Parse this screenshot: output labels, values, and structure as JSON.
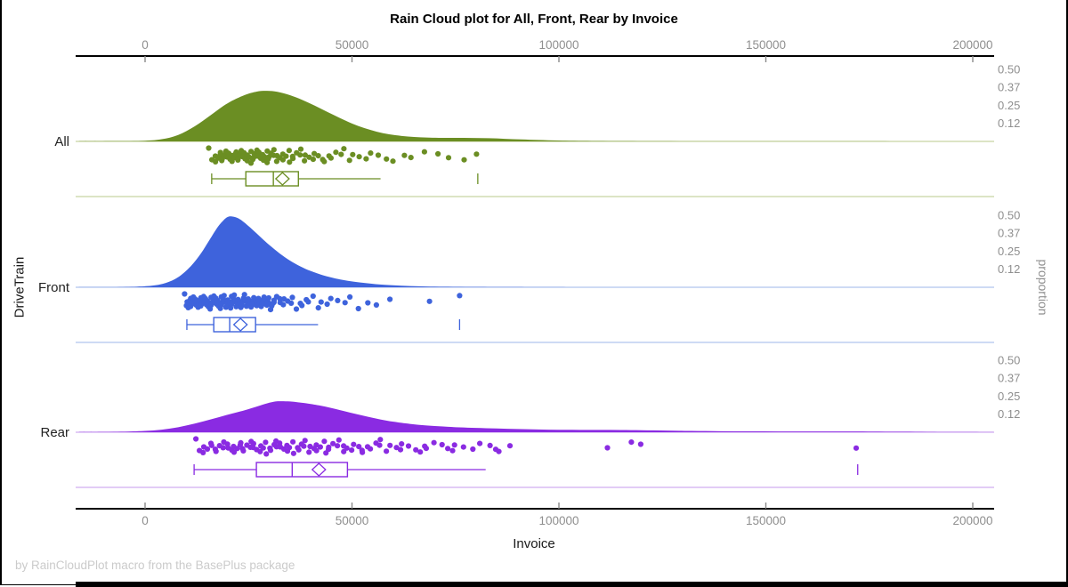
{
  "title": "Rain Cloud plot for All, Front, Rear by Invoice",
  "footer_note": "by RainCloudPlot macro from the BasePlus package",
  "style": {
    "background": "#ffffff",
    "axis_line_color": "#000000",
    "tick_color": "#8a8a8a",
    "tick_label_color": "#8f8f8f",
    "category_label_color": "#222222",
    "frame_color": "#000000"
  },
  "chart_data": {
    "type": "raincloud",
    "title": "Rain Cloud plot for All, Front, Rear by Invoice",
    "xlabel": "Invoice",
    "ylabel": "DriveTrain",
    "y2label": "proportion",
    "x_ticks": [
      0,
      50000,
      100000,
      150000,
      200000
    ],
    "x_tick_labels": [
      "0",
      "50000",
      "100000",
      "150000",
      "200000"
    ],
    "x_range": [
      -16800,
      205200
    ],
    "grid": false,
    "categories": [
      "All",
      "Front",
      "Rear"
    ],
    "proportion_ticks": [
      0.5,
      0.375,
      0.25,
      0.125
    ],
    "proportion_tick_labels": [
      "0.50",
      "0.37",
      "0.25",
      "0.12"
    ],
    "series": [
      {
        "name": "All",
        "color": "#6B8E23",
        "light_color": "#C8D3A2",
        "box": {
          "min": 16100,
          "q1": 24350,
          "median": 31000,
          "mean": 33200,
          "q3": 37050,
          "max": 56900,
          "outliers": [
            80400
          ]
        },
        "density": [
          [
            -16000,
            0.001
          ],
          [
            -8000,
            0.002
          ],
          [
            0,
            0.005
          ],
          [
            4000,
            0.015
          ],
          [
            8000,
            0.045
          ],
          [
            12000,
            0.105
          ],
          [
            16000,
            0.185
          ],
          [
            20000,
            0.265
          ],
          [
            24000,
            0.32
          ],
          [
            27000,
            0.345
          ],
          [
            29500,
            0.35
          ],
          [
            32000,
            0.343
          ],
          [
            35000,
            0.32
          ],
          [
            38000,
            0.287
          ],
          [
            41000,
            0.248
          ],
          [
            44000,
            0.205
          ],
          [
            47000,
            0.163
          ],
          [
            50000,
            0.124
          ],
          [
            53000,
            0.092
          ],
          [
            56000,
            0.067
          ],
          [
            59000,
            0.049
          ],
          [
            62000,
            0.038
          ],
          [
            65000,
            0.031
          ],
          [
            68000,
            0.027
          ],
          [
            71000,
            0.025
          ],
          [
            75000,
            0.0245
          ],
          [
            79000,
            0.024
          ],
          [
            83000,
            0.022
          ],
          [
            87000,
            0.018
          ],
          [
            91000,
            0.014
          ],
          [
            95000,
            0.01
          ],
          [
            100000,
            0.006
          ],
          [
            106000,
            0.0035
          ],
          [
            114000,
            0.002
          ],
          [
            125000,
            0.0012
          ],
          [
            140000,
            0.0008
          ],
          [
            160000,
            0.0005
          ],
          [
            180000,
            0.0003
          ],
          [
            205000,
            0.0002
          ]
        ],
        "points": [
          15700,
          16200,
          16800,
          17200,
          17500,
          17900,
          18300,
          18500,
          18800,
          19200,
          19500,
          19700,
          20100,
          20400,
          20600,
          20800,
          21200,
          21500,
          21700,
          21900,
          22300,
          22700,
          22900,
          23100,
          23400,
          23800,
          24000,
          24200,
          24500,
          24900,
          25100,
          25300,
          25700,
          26100,
          26300,
          26400,
          26800,
          27200,
          27400,
          27600,
          28000,
          28400,
          28600,
          28800,
          29200,
          29600,
          29800,
          30000,
          30400,
          30800,
          31300,
          31700,
          32200,
          32600,
          33100,
          33500,
          34000,
          34500,
          35000,
          35500,
          36000,
          36600,
          37200,
          37800,
          38400,
          39000,
          39700,
          40400,
          41100,
          41800,
          42600,
          43400,
          44300,
          45200,
          46100,
          47100,
          48200,
          49300,
          50500,
          51800,
          53200,
          54700,
          56300,
          58000,
          60000,
          62500,
          64500,
          67500,
          70500,
          73500,
          77000,
          80400
        ]
      },
      {
        "name": "Front",
        "color": "#3E63DC",
        "light_color": "#B0C3EE",
        "box": {
          "min": 10100,
          "q1": 16600,
          "median": 20450,
          "mean": 23050,
          "q3": 26700,
          "max": 41800,
          "outliers": [
            76000
          ]
        },
        "density": [
          [
            -16000,
            0.0005
          ],
          [
            -8000,
            0.001
          ],
          [
            -2000,
            0.004
          ],
          [
            2000,
            0.012
          ],
          [
            5000,
            0.03
          ],
          [
            8000,
            0.07
          ],
          [
            11000,
            0.145
          ],
          [
            13500,
            0.235
          ],
          [
            15500,
            0.325
          ],
          [
            17500,
            0.415
          ],
          [
            19000,
            0.465
          ],
          [
            20000,
            0.487
          ],
          [
            21000,
            0.49
          ],
          [
            22500,
            0.478
          ],
          [
            24000,
            0.448
          ],
          [
            26000,
            0.398
          ],
          [
            28000,
            0.345
          ],
          [
            30000,
            0.293
          ],
          [
            32500,
            0.235
          ],
          [
            35000,
            0.185
          ],
          [
            37500,
            0.145
          ],
          [
            40000,
            0.113
          ],
          [
            43000,
            0.083
          ],
          [
            46000,
            0.061
          ],
          [
            49000,
            0.045
          ],
          [
            52000,
            0.033
          ],
          [
            55000,
            0.024
          ],
          [
            58000,
            0.017
          ],
          [
            62000,
            0.011
          ],
          [
            66000,
            0.007
          ],
          [
            70000,
            0.0045
          ],
          [
            75000,
            0.003
          ],
          [
            80000,
            0.002
          ],
          [
            86000,
            0.0012
          ],
          [
            95000,
            0.0006
          ],
          [
            110000,
            0.0003
          ],
          [
            205000,
            0.0001
          ]
        ],
        "points": [
          9875,
          10050,
          10220,
          10390,
          10560,
          10740,
          10920,
          11100,
          11280,
          11460,
          11650,
          11840,
          12030,
          12220,
          12410,
          12600,
          12790,
          12980,
          13170,
          13360,
          13550,
          13740,
          13930,
          14120,
          14310,
          14500,
          14690,
          14880,
          15070,
          15260,
          15450,
          15640,
          15830,
          16020,
          16210,
          16400,
          16590,
          16780,
          16970,
          17160,
          17350,
          17540,
          17730,
          17920,
          18110,
          18300,
          18490,
          18680,
          18870,
          19060,
          19250,
          19440,
          19630,
          19820,
          20010,
          20200,
          20390,
          20580,
          20770,
          20960,
          21150,
          21340,
          21530,
          21720,
          21910,
          22100,
          22290,
          22480,
          22670,
          22860,
          23050,
          23240,
          23430,
          23620,
          23810,
          24000,
          24190,
          24380,
          24570,
          24760,
          24950,
          25140,
          25330,
          25520,
          25710,
          25900,
          26090,
          26280,
          26470,
          26660,
          26850,
          27040,
          27230,
          27420,
          27610,
          27800,
          27990,
          28180,
          28370,
          28560,
          28750,
          28940,
          29130,
          29320,
          29510,
          29700,
          29890,
          30080,
          30270,
          30460,
          30700,
          31000,
          31400,
          31800,
          32300,
          32800,
          33300,
          33900,
          34500,
          35100,
          35800,
          36500,
          37200,
          38000,
          38800,
          39700,
          40600,
          41600,
          42700,
          43900,
          45200,
          46600,
          48100,
          49700,
          51500,
          53500,
          56000,
          59000,
          69000,
          76000
        ]
      },
      {
        "name": "Rear",
        "color": "#8A2BE2",
        "light_color": "#D0ADF0",
        "box": {
          "min": 11850,
          "q1": 26900,
          "median": 35550,
          "mean": 42000,
          "q3": 48900,
          "max": 82300,
          "outliers": [
            172200
          ]
        },
        "density": [
          [
            -16000,
            0.001
          ],
          [
            -10000,
            0.002
          ],
          [
            -4000,
            0.005
          ],
          [
            0,
            0.009
          ],
          [
            4000,
            0.018
          ],
          [
            8000,
            0.035
          ],
          [
            12000,
            0.06
          ],
          [
            16000,
            0.09
          ],
          [
            20000,
            0.122
          ],
          [
            24000,
            0.152
          ],
          [
            27000,
            0.178
          ],
          [
            29500,
            0.2
          ],
          [
            31500,
            0.213
          ],
          [
            33000,
            0.215
          ],
          [
            35000,
            0.213
          ],
          [
            37000,
            0.207
          ],
          [
            39000,
            0.2
          ],
          [
            42000,
            0.186
          ],
          [
            45000,
            0.168
          ],
          [
            48000,
            0.147
          ],
          [
            51000,
            0.126
          ],
          [
            54000,
            0.106
          ],
          [
            57000,
            0.088
          ],
          [
            60000,
            0.073
          ],
          [
            64000,
            0.058
          ],
          [
            68000,
            0.047
          ],
          [
            72000,
            0.04
          ],
          [
            76000,
            0.034
          ],
          [
            80000,
            0.03
          ],
          [
            85000,
            0.026
          ],
          [
            90000,
            0.022
          ],
          [
            95000,
            0.019
          ],
          [
            100000,
            0.017
          ],
          [
            105000,
            0.016
          ],
          [
            110000,
            0.0158
          ],
          [
            115000,
            0.015
          ],
          [
            120000,
            0.0135
          ],
          [
            126000,
            0.0112
          ],
          [
            132000,
            0.009
          ],
          [
            139000,
            0.007
          ],
          [
            146000,
            0.0058
          ],
          [
            153000,
            0.0052
          ],
          [
            160000,
            0.0052
          ],
          [
            166000,
            0.0055
          ],
          [
            171000,
            0.0056
          ],
          [
            176000,
            0.005
          ],
          [
            182000,
            0.0038
          ],
          [
            189000,
            0.0025
          ],
          [
            196000,
            0.0014
          ],
          [
            205000,
            0.0008
          ]
        ],
        "points": [
          12600,
          13200,
          13800,
          14400,
          15000,
          15600,
          16200,
          16800,
          17400,
          18000,
          18600,
          19200,
          19800,
          20400,
          21000,
          21300,
          21600,
          22200,
          22800,
          23100,
          23400,
          24000,
          24600,
          25200,
          25800,
          26100,
          26400,
          27000,
          27600,
          28200,
          28500,
          28800,
          29400,
          30000,
          30600,
          31200,
          31500,
          31800,
          32400,
          33000,
          33600,
          34200,
          34500,
          34800,
          35400,
          36000,
          36700,
          37400,
          37800,
          38100,
          38800,
          39500,
          40200,
          40900,
          41200,
          41600,
          42300,
          43000,
          43800,
          44200,
          44600,
          45400,
          46200,
          47000,
          47900,
          48300,
          48800,
          49700,
          50600,
          51600,
          52100,
          52600,
          53600,
          54700,
          55800,
          56400,
          57000,
          58200,
          59500,
          60800,
          61500,
          62200,
          63600,
          65100,
          66600,
          67400,
          68200,
          69800,
          71500,
          73300,
          74200,
          75100,
          77000,
          79000,
          81100,
          83300,
          84400,
          85600,
          88000,
          112000,
          117500,
          119500,
          172000
        ]
      }
    ]
  }
}
